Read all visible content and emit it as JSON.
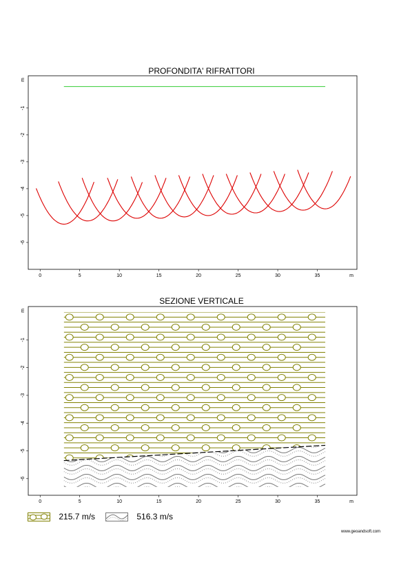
{
  "chart_data": [
    {
      "type": "line",
      "title": "PROFONDITA' RIFRATTORI",
      "xlabel": "m",
      "ylabel": "m",
      "xlim": [
        -1.5,
        40
      ],
      "ylim": [
        -7,
        0.2
      ],
      "xticks": [
        "0",
        "5",
        "10",
        "15",
        "20",
        "25",
        "30",
        "35"
      ],
      "yticks": [
        "-1",
        "-2",
        "-3",
        "-4",
        "-5",
        "-6"
      ],
      "grid": false,
      "series": [
        {
          "color": "#33cc33",
          "kind": "refractor-1",
          "x": [
            3,
            36
          ],
          "y": [
            -0.2,
            -0.2
          ]
        },
        {
          "color": "#dd0000",
          "kind": "refractor-2-arcs",
          "arcs": [
            {
              "from": -0.5,
              "to": 6.8,
              "center": 3.0,
              "depth": -5.32,
              "top": -3.75
            },
            {
              "from": 2.3,
              "to": 9.8,
              "center": 6.0,
              "depth": -5.2,
              "top": -3.65
            },
            {
              "from": 5.3,
              "to": 12.9,
              "center": 9.2,
              "depth": -5.2,
              "top": -3.6
            },
            {
              "from": 8.5,
              "to": 15.9,
              "center": 12.2,
              "depth": -5.1,
              "top": -3.6
            },
            {
              "from": 11.5,
              "to": 18.9,
              "center": 15.2,
              "depth": -5.1,
              "top": -3.55
            },
            {
              "from": 14.5,
              "to": 21.9,
              "center": 18.2,
              "depth": -5.05,
              "top": -3.5
            },
            {
              "from": 17.5,
              "to": 24.9,
              "center": 21.2,
              "depth": -5.0,
              "top": -3.5
            },
            {
              "from": 20.5,
              "to": 27.9,
              "center": 24.2,
              "depth": -4.95,
              "top": -3.45
            },
            {
              "from": 23.5,
              "to": 30.9,
              "center": 27.2,
              "depth": -4.9,
              "top": -3.45
            },
            {
              "from": 26.5,
              "to": 33.9,
              "center": 30.2,
              "depth": -4.85,
              "top": -3.4
            },
            {
              "from": 29.5,
              "to": 36.9,
              "center": 33.2,
              "depth": -4.8,
              "top": -3.35
            },
            {
              "from": 32.5,
              "to": 39.2,
              "center": 36.0,
              "depth": -4.75,
              "top": -3.3
            }
          ]
        }
      ]
    },
    {
      "type": "area",
      "title": "SEZIONE VERTICALE",
      "xlabel": "m",
      "ylabel": "m",
      "xlim": [
        -1.5,
        40
      ],
      "ylim": [
        -6.6,
        0.2
      ],
      "xticks": [
        "0",
        "5",
        "10",
        "15",
        "20",
        "25",
        "30",
        "35"
      ],
      "yticks": [
        "-1",
        "-2",
        "-3",
        "-4",
        "-5",
        "-6"
      ],
      "grid": false,
      "x_extent": [
        3,
        36
      ],
      "bottom": -6.3,
      "boundary": {
        "x": [
          3,
          36
        ],
        "y": [
          -5.35,
          -4.8
        ]
      },
      "layers": [
        {
          "velocity": 215.7,
          "unit": "m/s",
          "color": "#808000",
          "pattern": "gravel"
        },
        {
          "velocity": 516.3,
          "unit": "m/s",
          "color": "#777777",
          "pattern": "waves"
        }
      ]
    }
  ],
  "legend": {
    "items": [
      {
        "label": "215.7 m/s",
        "icon": "gravel-swatch-icon"
      },
      {
        "label": "516.3 m/s",
        "icon": "wave-swatch-icon"
      }
    ]
  },
  "credit": "www.geoandsoft.com"
}
